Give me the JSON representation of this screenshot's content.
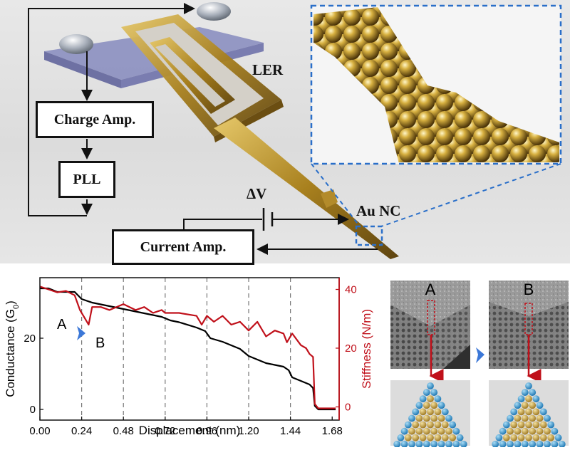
{
  "schematic": {
    "charge_amp": "Charge Amp.",
    "pll": "PLL",
    "current_amp": "Current Amp.",
    "ler": "LER",
    "delta_v": "ΔV",
    "au_nc": "Au NC"
  },
  "colors": {
    "conductance": "#000000",
    "stiffness": "#c0101a",
    "inset_border": "#2a6fc9",
    "arrow_blue": "#3c78d8",
    "gold": "#c9a227",
    "atom_blue": "#3aa3d8"
  },
  "chart_data": {
    "type": "line",
    "xlabel": "Displacement (nm)",
    "ylabel_left": "Conductance (G",
    "ylabel_left_sub": "0",
    "ylabel_left_end": ")",
    "ylabel_right": "Stiffness (N/m)",
    "xlim": [
      0.0,
      1.72
    ],
    "ylim_left": [
      -3,
      37
    ],
    "ylim_right": [
      -4.5,
      44
    ],
    "x_ticks": [
      "0.00",
      "0.24",
      "0.48",
      "0.72",
      "0.96",
      "1.20",
      "1.44",
      "1.68"
    ],
    "y_left_ticks": [
      "0",
      "20"
    ],
    "y_right_ticks": [
      "0",
      "20",
      "40"
    ],
    "grid_x_dashed": [
      0.24,
      0.48,
      0.72,
      0.96,
      1.2,
      1.44
    ],
    "annotations": {
      "a": "A",
      "b": "B"
    },
    "series": [
      {
        "name": "Conductance",
        "axis": "left",
        "x": [
          0.0,
          0.05,
          0.1,
          0.15,
          0.2,
          0.22,
          0.24,
          0.3,
          0.4,
          0.5,
          0.6,
          0.7,
          0.75,
          0.8,
          0.9,
          0.95,
          0.98,
          1.05,
          1.1,
          1.15,
          1.2,
          1.25,
          1.3,
          1.35,
          1.4,
          1.43,
          1.45,
          1.5,
          1.55,
          1.57,
          1.58,
          1.6,
          1.7
        ],
        "y": [
          34,
          34,
          33,
          33,
          33,
          32,
          31,
          30,
          29,
          28,
          27,
          26,
          25,
          24.5,
          23,
          22,
          20,
          19,
          18,
          17,
          15,
          14,
          13,
          12.5,
          12,
          11,
          9,
          8,
          7,
          6,
          1,
          0,
          0
        ]
      },
      {
        "name": "Stiffness",
        "axis": "right",
        "x": [
          0.0,
          0.05,
          0.1,
          0.15,
          0.2,
          0.23,
          0.26,
          0.28,
          0.3,
          0.35,
          0.4,
          0.48,
          0.55,
          0.6,
          0.65,
          0.7,
          0.72,
          0.8,
          0.9,
          0.93,
          0.96,
          1.0,
          1.05,
          1.1,
          1.15,
          1.2,
          1.25,
          1.3,
          1.35,
          1.4,
          1.42,
          1.45,
          1.5,
          1.53,
          1.55,
          1.57,
          1.58,
          1.6,
          1.7
        ],
        "y": [
          41,
          40,
          39,
          39.5,
          38,
          33,
          30,
          28,
          34,
          34,
          33,
          35,
          33,
          34,
          32,
          33,
          32,
          32,
          31,
          28,
          31,
          29,
          31,
          28,
          29,
          26,
          29,
          24,
          26,
          25,
          22,
          25,
          21,
          20,
          18,
          17,
          1,
          -0.5,
          -0.5
        ]
      }
    ]
  },
  "tem": {
    "label_a": "A",
    "label_b": "B"
  }
}
